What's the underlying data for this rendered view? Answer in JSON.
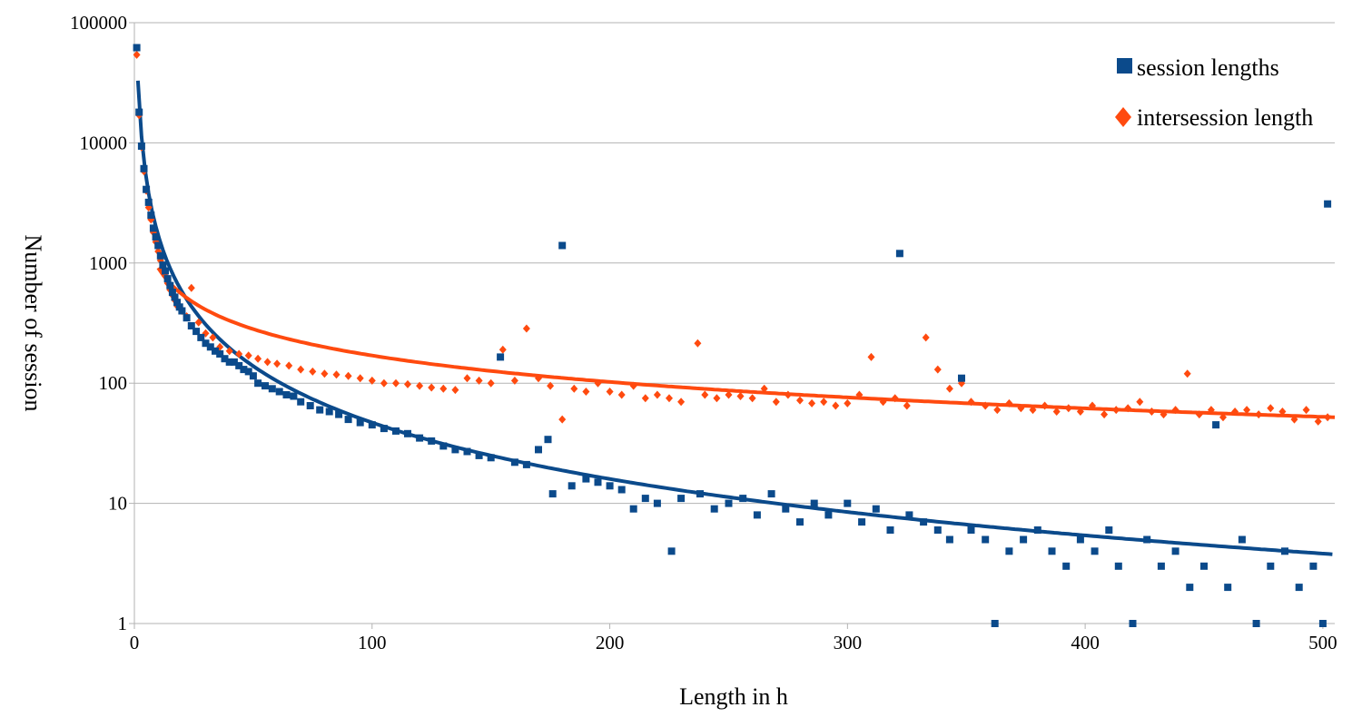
{
  "chart_data": {
    "type": "scatter",
    "title": "",
    "xlabel": "Length in h",
    "ylabel": "Number of session",
    "xlim": [
      0,
      505
    ],
    "xticks": [
      0,
      100,
      200,
      300,
      400,
      500
    ],
    "ylim": [
      1,
      100000
    ],
    "yscale": "log",
    "yticks": [
      1,
      10,
      100,
      1000,
      10000,
      100000
    ],
    "ytick_labels": [
      "1",
      "10",
      "100",
      "1000",
      "10000",
      "100000"
    ],
    "grid": "horizontal",
    "legend_position": "top-right",
    "colors": {
      "session": "#0B4A8B",
      "intersession": "#FF4A0F",
      "grid": "#b3b3b3",
      "axis": "#b3b3b3"
    },
    "series": [
      {
        "name": "session lengths",
        "marker": "square",
        "color": "#0B4A8B",
        "trendline": {
          "type": "power",
          "a": 62000,
          "b": -1.56
        },
        "x": [
          1,
          2,
          3,
          4,
          5,
          6,
          7,
          8,
          9,
          10,
          11,
          12,
          13,
          14,
          15,
          16,
          17,
          18,
          19,
          20,
          22,
          24,
          26,
          28,
          30,
          32,
          34,
          36,
          38,
          40,
          42,
          44,
          46,
          48,
          50,
          52,
          55,
          58,
          61,
          64,
          67,
          70,
          74,
          78,
          82,
          86,
          90,
          95,
          100,
          105,
          110,
          115,
          120,
          125,
          130,
          135,
          140,
          145,
          150,
          154,
          160,
          165,
          170,
          174,
          176,
          180,
          184,
          190,
          195,
          200,
          205,
          210,
          215,
          220,
          226,
          230,
          238,
          244,
          250,
          256,
          262,
          268,
          274,
          280,
          286,
          292,
          300,
          306,
          312,
          318,
          322,
          326,
          332,
          338,
          343,
          348,
          352,
          358,
          362,
          368,
          374,
          380,
          386,
          392,
          398,
          404,
          410,
          414,
          420,
          426,
          432,
          438,
          444,
          450,
          455,
          460,
          466,
          472,
          478,
          484,
          490,
          496,
          500,
          502
        ],
        "y": [
          62000,
          18000,
          9400,
          6100,
          4100,
          3200,
          2500,
          1950,
          1650,
          1400,
          1150,
          960,
          860,
          740,
          650,
          570,
          520,
          470,
          430,
          400,
          350,
          300,
          270,
          240,
          215,
          200,
          185,
          175,
          160,
          150,
          150,
          140,
          130,
          125,
          115,
          100,
          95,
          90,
          85,
          80,
          78,
          70,
          65,
          60,
          58,
          55,
          50,
          47,
          45,
          42,
          40,
          38,
          35,
          33,
          30,
          28,
          27,
          25,
          24,
          165,
          22,
          21,
          28,
          34,
          12,
          1400,
          14,
          16,
          15,
          14,
          13,
          9,
          11,
          10,
          4,
          11,
          12,
          9,
          10,
          11,
          8,
          12,
          9,
          7,
          10,
          8,
          10,
          7,
          9,
          6,
          1200,
          8,
          7,
          6,
          5,
          110,
          6,
          5,
          1,
          4,
          5,
          6,
          4,
          3,
          5,
          4,
          6,
          3,
          1,
          5,
          3,
          4,
          2,
          3,
          45,
          2,
          5,
          1,
          3,
          4,
          2,
          3,
          1,
          3100
        ]
      },
      {
        "name": "intersession length",
        "marker": "diamond",
        "color": "#FF4A0F",
        "trendline": {
          "type": "power",
          "a": 4900,
          "b": -0.73
        },
        "x": [
          1,
          2,
          3,
          4,
          5,
          6,
          7,
          8,
          9,
          10,
          11,
          12,
          13,
          14,
          15,
          16,
          17,
          18,
          20,
          22,
          24,
          27,
          30,
          33,
          36,
          40,
          44,
          48,
          52,
          56,
          60,
          65,
          70,
          75,
          80,
          85,
          90,
          95,
          100,
          105,
          110,
          115,
          120,
          125,
          130,
          135,
          140,
          145,
          150,
          155,
          160,
          165,
          170,
          175,
          180,
          185,
          190,
          195,
          200,
          205,
          210,
          215,
          220,
          225,
          230,
          237,
          240,
          245,
          250,
          255,
          260,
          265,
          270,
          275,
          280,
          285,
          290,
          295,
          300,
          305,
          310,
          315,
          320,
          325,
          333,
          338,
          343,
          348,
          352,
          358,
          363,
          368,
          373,
          378,
          383,
          388,
          393,
          398,
          403,
          408,
          413,
          418,
          423,
          428,
          433,
          438,
          443,
          448,
          453,
          458,
          463,
          468,
          473,
          478,
          483,
          488,
          493,
          498,
          502
        ],
        "y": [
          54000,
          17000,
          9200,
          5800,
          4000,
          2900,
          2300,
          1800,
          1500,
          1250,
          1050,
          900,
          780,
          680,
          600,
          540,
          490,
          440,
          400,
          360,
          620,
          320,
          260,
          240,
          200,
          185,
          175,
          170,
          160,
          150,
          145,
          140,
          130,
          125,
          120,
          118,
          115,
          110,
          105,
          100,
          100,
          98,
          95,
          92,
          90,
          88,
          110,
          105,
          100,
          190,
          105,
          285,
          110,
          95,
          50,
          90,
          85,
          100,
          85,
          80,
          95,
          75,
          80,
          75,
          70,
          215,
          80,
          75,
          80,
          78,
          75,
          90,
          70,
          80,
          72,
          68,
          70,
          65,
          68,
          80,
          165,
          70,
          75,
          65,
          240,
          130,
          90,
          100,
          70,
          65,
          60,
          68,
          62,
          60,
          65,
          58,
          62,
          58,
          65,
          55,
          60,
          62,
          70,
          58,
          55,
          60,
          120,
          55,
          60,
          52,
          58,
          60,
          55,
          62,
          58,
          50,
          60,
          48,
          52
        ]
      }
    ]
  }
}
